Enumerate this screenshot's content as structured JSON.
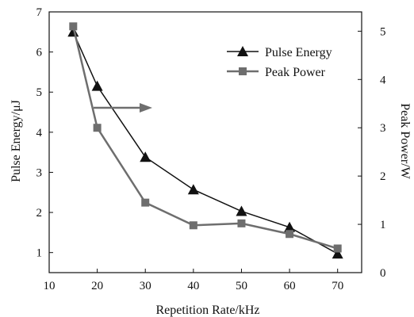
{
  "chart_data": {
    "type": "line",
    "xlabel": "Repetition Rate/kHz",
    "ylabel": "Pulse Energy/μJ",
    "y2label": "Peak Power/W",
    "xlim": [
      10,
      75
    ],
    "ylim": [
      0.5,
      7
    ],
    "y2lim": [
      0,
      5.4
    ],
    "xticks": [
      10,
      20,
      30,
      40,
      50,
      60,
      70
    ],
    "yticks": [
      1,
      2,
      3,
      4,
      5,
      6,
      7
    ],
    "y2ticks": [
      0,
      1,
      2,
      3,
      4,
      5
    ],
    "grid": false,
    "legend_position": "top-right",
    "annotation": "arrow pointing right (Peak Power curve uses right axis)",
    "series": [
      {
        "name": "Pulse Energy",
        "axis": "left",
        "marker": "triangle",
        "color": "#111111",
        "x": [
          15,
          20,
          30,
          40,
          50,
          60,
          70
        ],
        "y": [
          6.5,
          5.15,
          3.38,
          2.57,
          2.03,
          1.63,
          0.97
        ]
      },
      {
        "name": "Peak Power",
        "axis": "right",
        "marker": "square",
        "color": "#6e6e6e",
        "x": [
          15,
          20,
          30,
          40,
          50,
          60,
          70
        ],
        "y": [
          5.1,
          3.0,
          1.45,
          0.98,
          1.02,
          0.8,
          0.5
        ]
      }
    ]
  }
}
